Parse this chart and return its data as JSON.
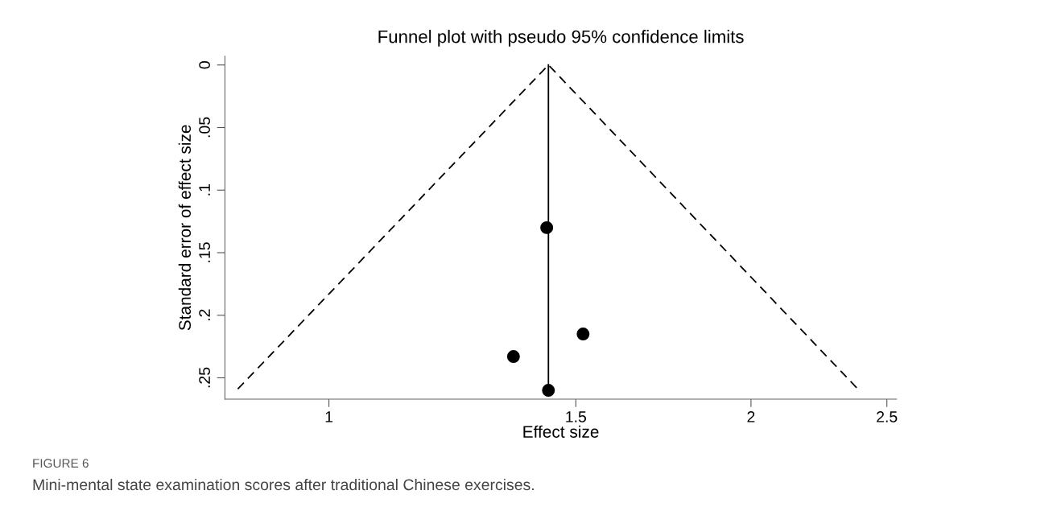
{
  "chart_data": {
    "type": "scatter",
    "title": "Funnel plot with pseudo 95% confidence limits",
    "xlabel": "Effect size",
    "ylabel": "Standard error of effect size",
    "log": "x",
    "marker": "circle",
    "grid": false,
    "legend": false,
    "x": [
      1.43,
      1.354,
      1.518,
      1.434
    ],
    "series": [
      {
        "color": "#000000",
        "values": [
          0.13,
          0.233,
          0.215,
          0.26
        ]
      },
      {
        "type": "line",
        "color": "#000000",
        "line_style": "dashed",
        "marker": "none",
        "x": [
          0.861,
          1.434,
          2.384
        ],
        "values": [
          0.259,
          0,
          0.259
        ]
      },
      {
        "type": "line",
        "color": "#000000",
        "line_style": "solid",
        "marker": "none",
        "x": [
          1.434,
          1.434
        ],
        "values": [
          0,
          0.26
        ]
      }
    ],
    "xlim": [
      0.843,
      2.54
    ],
    "xticks": [
      1,
      1.5,
      2,
      2.5
    ],
    "ylim": [
      0.267,
      -0.007
    ],
    "yticks": [
      {
        "value": 0,
        "label": "0"
      },
      {
        "value": 0.05,
        "label": ".05"
      },
      {
        "value": 0.1,
        "label": ".1"
      },
      {
        "value": 0.15,
        "label": ".15"
      },
      {
        "value": 0.2,
        "label": ".2"
      },
      {
        "value": 0.25,
        "label": ".25"
      }
    ],
    "annotations": [
      "FIGURE 6",
      "Mini-mental state examination scores after traditional Chinese exercises."
    ]
  }
}
